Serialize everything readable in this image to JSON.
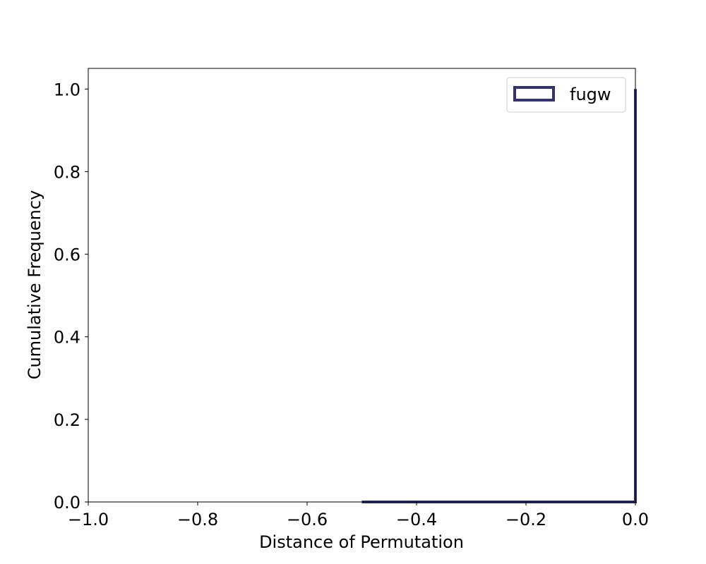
{
  "chart_data": {
    "type": "step",
    "title": "",
    "xlabel": "Distance of Permutation",
    "ylabel": "Cumulative Frequency",
    "xlim": [
      -1.0,
      0.0
    ],
    "ylim": [
      0.0,
      1.05
    ],
    "x_ticks": [
      -1.0,
      -0.8,
      -0.6,
      -0.4,
      -0.2,
      0.0
    ],
    "x_tick_labels": [
      "−1.0",
      "−0.8",
      "−0.6",
      "−0.4",
      "−0.2",
      "0.0"
    ],
    "y_ticks": [
      0.0,
      0.2,
      0.4,
      0.6,
      0.8,
      1.0
    ],
    "y_tick_labels": [
      "0.0",
      "0.2",
      "0.4",
      "0.6",
      "0.8",
      "1.0"
    ],
    "grid": false,
    "legend": {
      "position": "top-right",
      "entries": [
        "fugw"
      ]
    },
    "series": [
      {
        "name": "fugw",
        "color": "#33336e",
        "style": "unfilled step histogram",
        "points": [
          [
            -0.5,
            0.0
          ],
          [
            0.0,
            0.0
          ],
          [
            0.0,
            1.0
          ]
        ]
      }
    ]
  }
}
